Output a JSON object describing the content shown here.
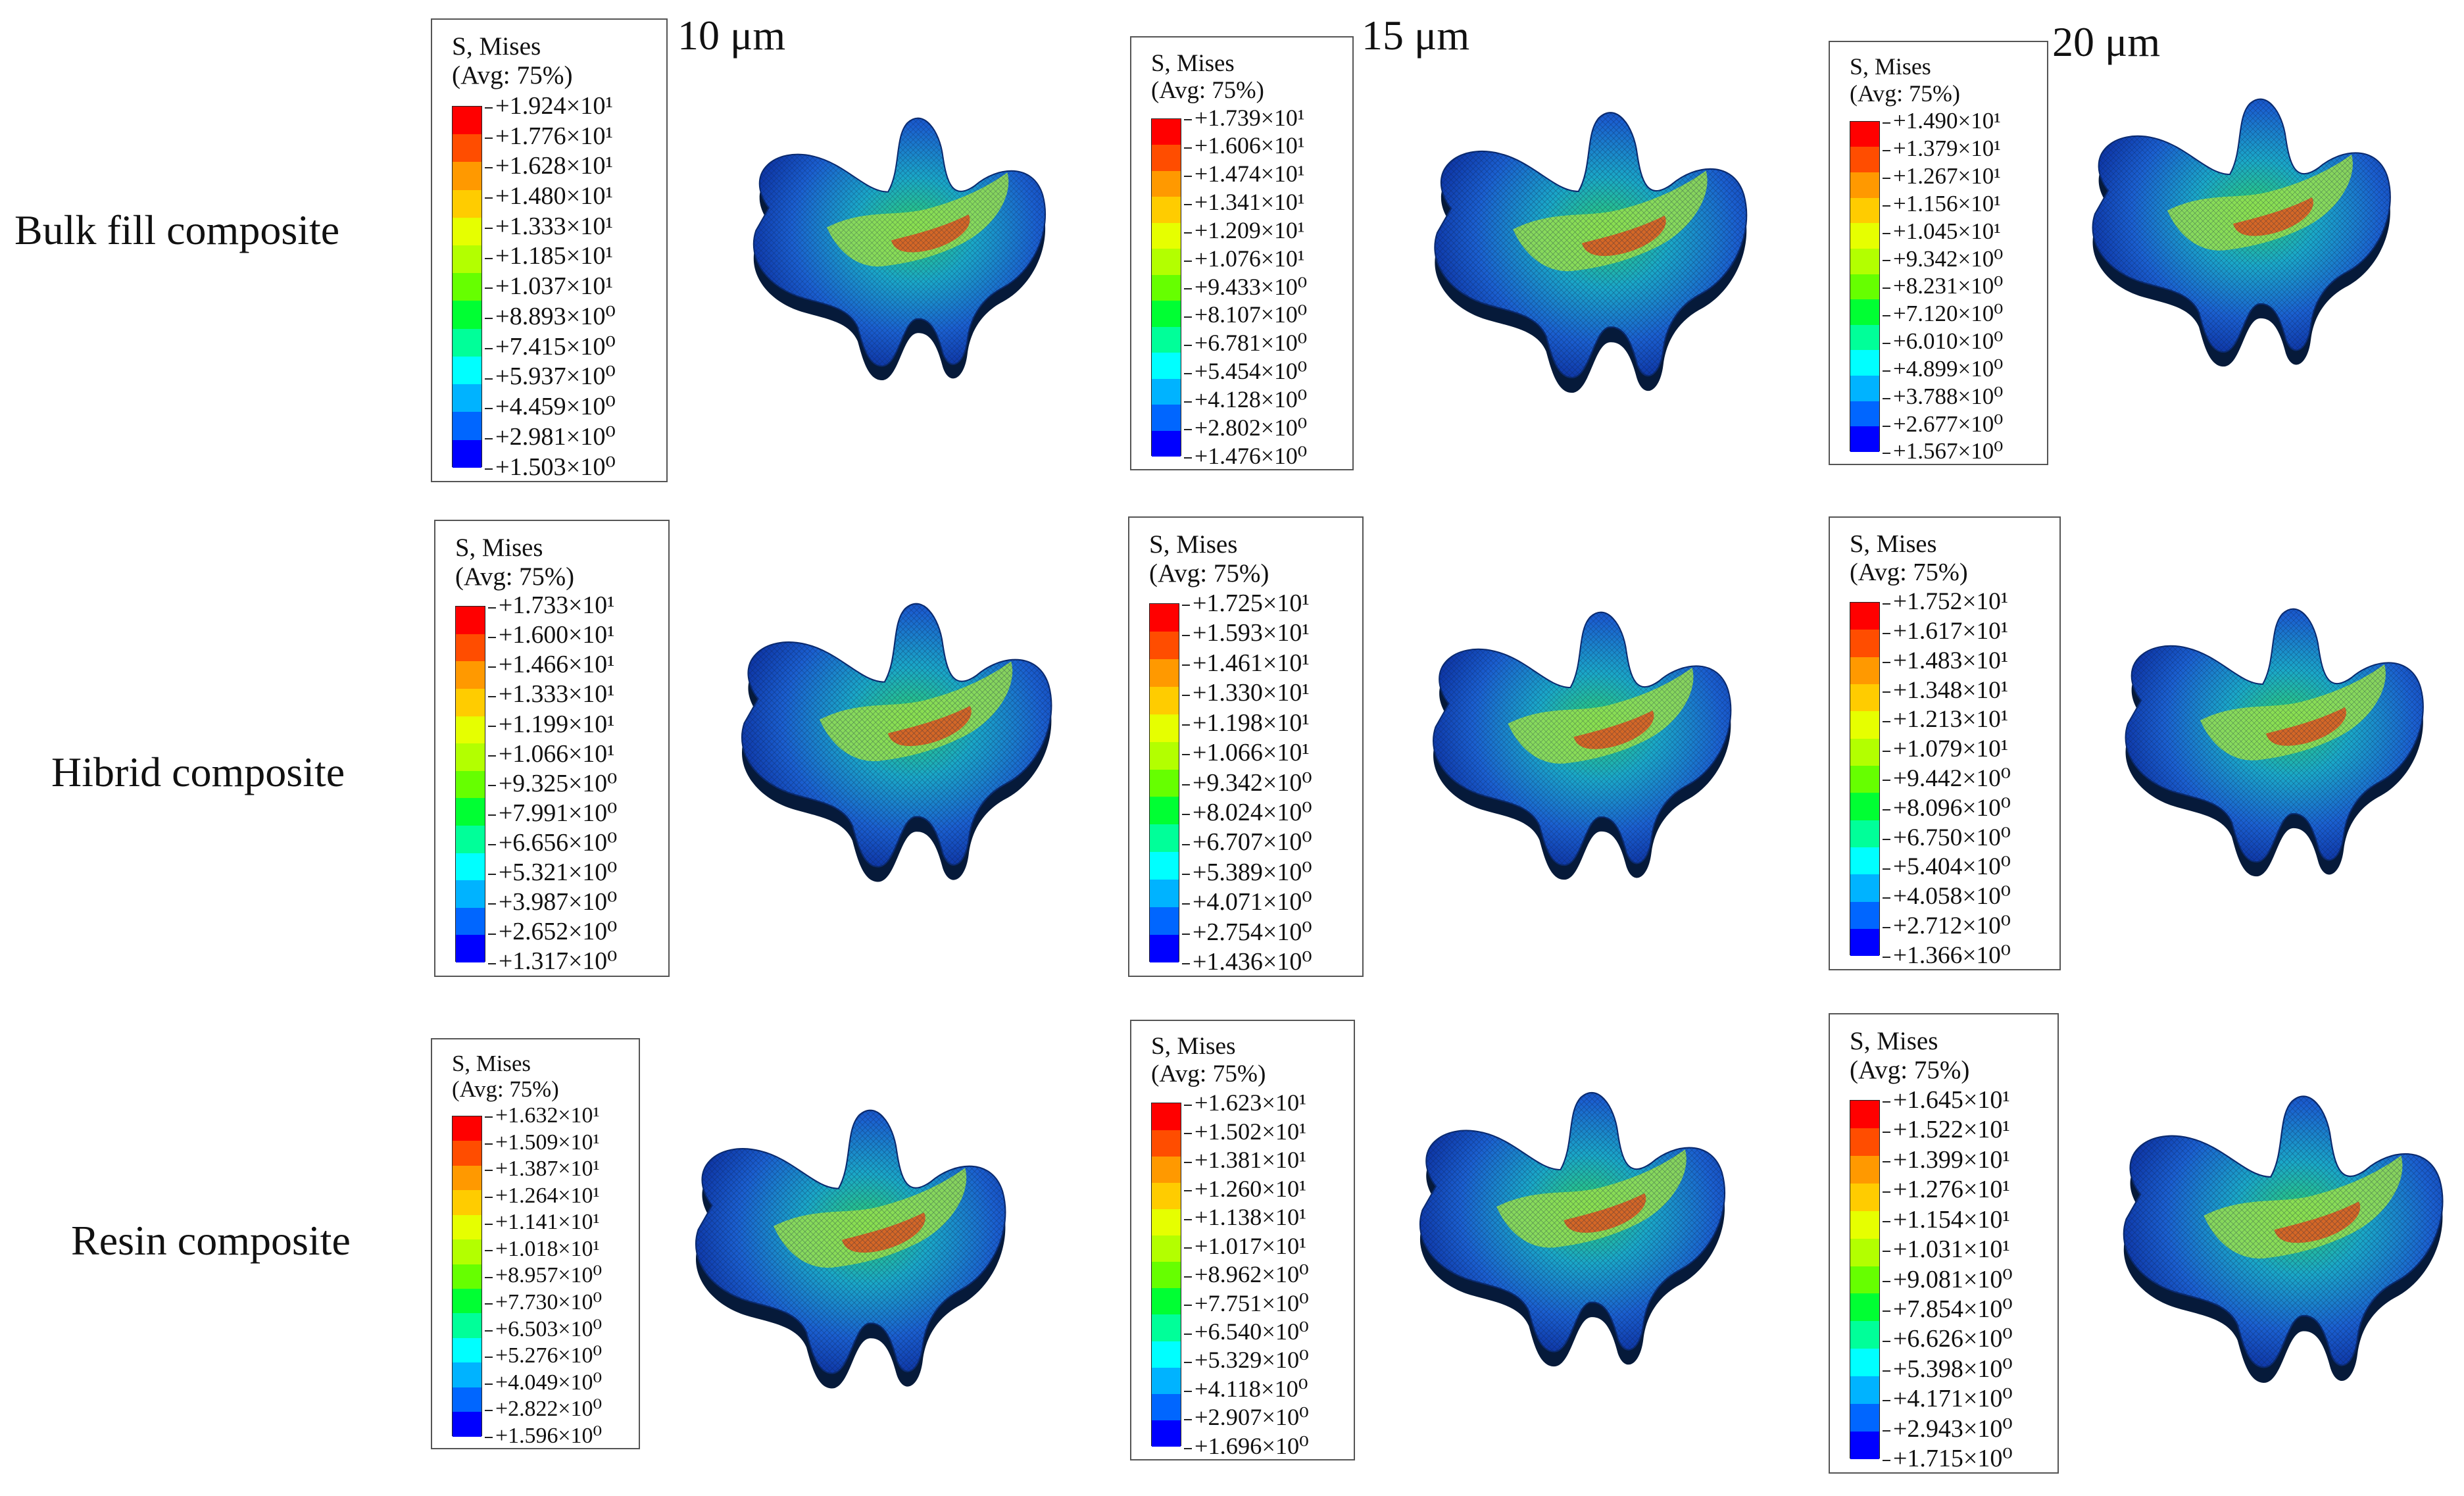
{
  "columns": [
    "10 μm",
    "15 μm",
    "20 μm"
  ],
  "rows": [
    "Bulk fill composite",
    "Hibrid composite",
    "Resin composite"
  ],
  "legend_title": [
    "S, Mises",
    "(Avg: 75%)"
  ],
  "legend_colors": [
    "#ff0000",
    "#ff4d00",
    "#ff9900",
    "#ffcc00",
    "#e6ff00",
    "#b3ff00",
    "#66ff00",
    "#00ff33",
    "#00ff99",
    "#00ffff",
    "#00b3ff",
    "#0066ff",
    "#0000ff"
  ],
  "panels": [
    {
      "values": [
        "+1.924×10¹",
        "+1.776×10¹",
        "+1.628×10¹",
        "+1.480×10¹",
        "+1.333×10¹",
        "+1.185×10¹",
        "+1.037×10¹",
        "+8.893×10⁰",
        "+7.415×10⁰",
        "+5.937×10⁰",
        "+4.459×10⁰",
        "+2.981×10⁰",
        "+1.503×10⁰"
      ]
    },
    {
      "values": [
        "+1.739×10¹",
        "+1.606×10¹",
        "+1.474×10¹",
        "+1.341×10¹",
        "+1.209×10¹",
        "+1.076×10¹",
        "+9.433×10⁰",
        "+8.107×10⁰",
        "+6.781×10⁰",
        "+5.454×10⁰",
        "+4.128×10⁰",
        "+2.802×10⁰",
        "+1.476×10⁰"
      ]
    },
    {
      "values": [
        "+1.490×10¹",
        "+1.379×10¹",
        "+1.267×10¹",
        "+1.156×10¹",
        "+1.045×10¹",
        "+9.342×10⁰",
        "+8.231×10⁰",
        "+7.120×10⁰",
        "+6.010×10⁰",
        "+4.899×10⁰",
        "+3.788×10⁰",
        "+2.677×10⁰",
        "+1.567×10⁰"
      ]
    },
    {
      "values": [
        "+1.733×10¹",
        "+1.600×10¹",
        "+1.466×10¹",
        "+1.333×10¹",
        "+1.199×10¹",
        "+1.066×10¹",
        "+9.325×10⁰",
        "+7.991×10⁰",
        "+6.656×10⁰",
        "+5.321×10⁰",
        "+3.987×10⁰",
        "+2.652×10⁰",
        "+1.317×10⁰"
      ]
    },
    {
      "values": [
        "+1.725×10¹",
        "+1.593×10¹",
        "+1.461×10¹",
        "+1.330×10¹",
        "+1.198×10¹",
        "+1.066×10¹",
        "+9.342×10⁰",
        "+8.024×10⁰",
        "+6.707×10⁰",
        "+5.389×10⁰",
        "+4.071×10⁰",
        "+2.754×10⁰",
        "+1.436×10⁰"
      ]
    },
    {
      "values": [
        "+1.752×10¹",
        "+1.617×10¹",
        "+1.483×10¹",
        "+1.348×10¹",
        "+1.213×10¹",
        "+1.079×10¹",
        "+9.442×10⁰",
        "+8.096×10⁰",
        "+6.750×10⁰",
        "+5.404×10⁰",
        "+4.058×10⁰",
        "+2.712×10⁰",
        "+1.366×10⁰"
      ]
    },
    {
      "values": [
        "+1.632×10¹",
        "+1.509×10¹",
        "+1.387×10¹",
        "+1.264×10¹",
        "+1.141×10¹",
        "+1.018×10¹",
        "+8.957×10⁰",
        "+7.730×10⁰",
        "+6.503×10⁰",
        "+5.276×10⁰",
        "+4.049×10⁰",
        "+2.822×10⁰",
        "+1.596×10⁰"
      ]
    },
    {
      "values": [
        "+1.623×10¹",
        "+1.502×10¹",
        "+1.381×10¹",
        "+1.260×10¹",
        "+1.138×10¹",
        "+1.017×10¹",
        "+8.962×10⁰",
        "+7.751×10⁰",
        "+6.540×10⁰",
        "+5.329×10⁰",
        "+4.118×10⁰",
        "+2.907×10⁰",
        "+1.696×10⁰"
      ]
    },
    {
      "values": [
        "+1.645×10¹",
        "+1.522×10¹",
        "+1.399×10¹",
        "+1.276×10¹",
        "+1.154×10¹",
        "+1.031×10¹",
        "+9.081×10⁰",
        "+7.854×10⁰",
        "+6.626×10⁰",
        "+5.398×10⁰",
        "+4.171×10⁰",
        "+2.943×10⁰",
        "+1.715×10⁰"
      ]
    }
  ]
}
